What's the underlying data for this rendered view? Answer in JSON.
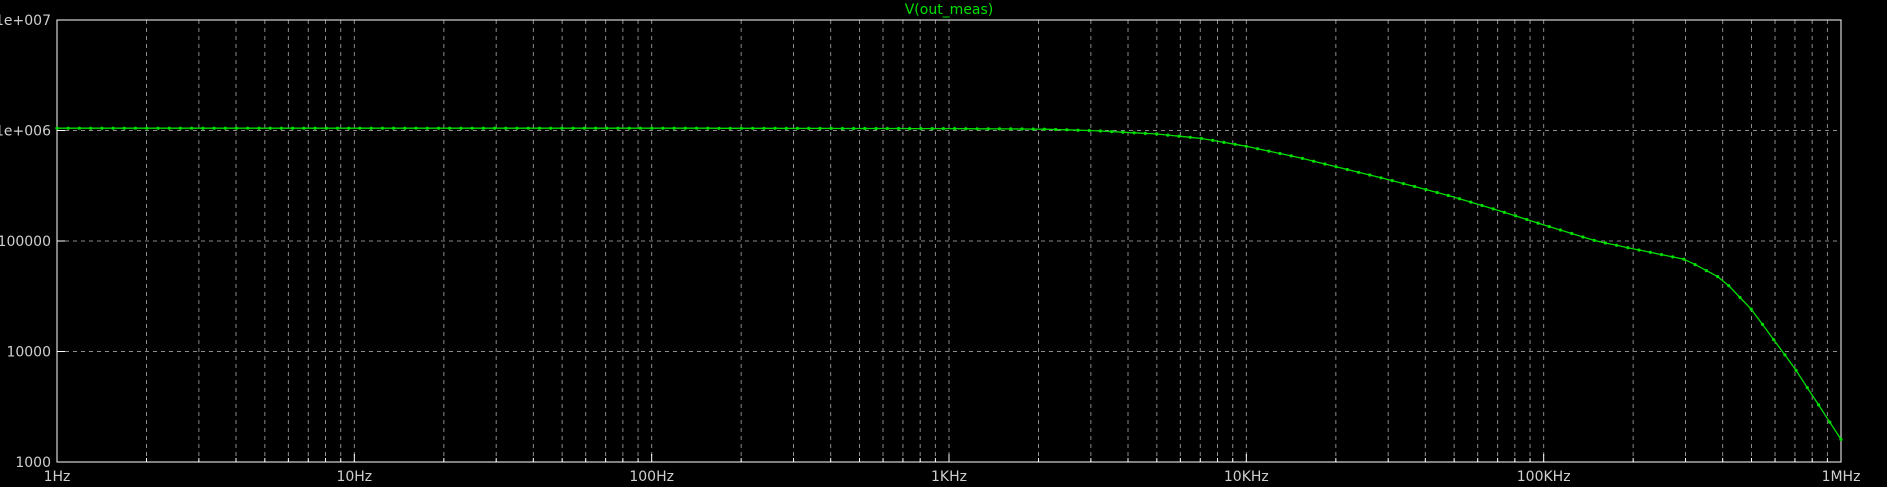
{
  "chart_data": {
    "type": "line",
    "title": "V(out_meas)",
    "xlabel": "",
    "ylabel": "",
    "x_scale": "log",
    "y_scale": "log",
    "xlim": [
      1,
      1000000
    ],
    "ylim": [
      1000,
      10000000
    ],
    "x_ticks": [
      {
        "value": 1,
        "label": "1Hz"
      },
      {
        "value": 10,
        "label": "10Hz"
      },
      {
        "value": 100,
        "label": "100Hz"
      },
      {
        "value": 1000,
        "label": "1KHz"
      },
      {
        "value": 10000,
        "label": "10KHz"
      },
      {
        "value": 100000,
        "label": "100KHz"
      },
      {
        "value": 1000000,
        "label": "1MHz"
      }
    ],
    "y_ticks": [
      {
        "value": 10000000,
        "label": "1e+007"
      },
      {
        "value": 1000000,
        "label": "1e+006"
      },
      {
        "value": 100000,
        "label": "100000"
      },
      {
        "value": 10000,
        "label": "10000"
      },
      {
        "value": 1000,
        "label": "1000"
      }
    ],
    "grid": true,
    "colors": {
      "background": "#000000",
      "axes": "#ffffff",
      "grid": "#8a8a8a",
      "trace": "#00e000",
      "title": "#00e000",
      "tick_text": "#cfcfcf"
    },
    "series": [
      {
        "name": "V(out_meas)",
        "x": [
          1,
          10,
          100,
          1000,
          2000,
          3000,
          5000,
          7000,
          10000,
          15000,
          20000,
          30000,
          50000,
          70000,
          100000,
          150000,
          200000,
          300000,
          400000,
          500000,
          700000,
          1000000
        ],
        "y": [
          1050000,
          1050000,
          1050000,
          1040000,
          1030000,
          1000000,
          930000,
          850000,
          720000,
          570000,
          470000,
          360000,
          250000,
          190000,
          140000,
          100000,
          85000,
          68000,
          45000,
          24000,
          7000,
          1600
        ]
      }
    ]
  }
}
